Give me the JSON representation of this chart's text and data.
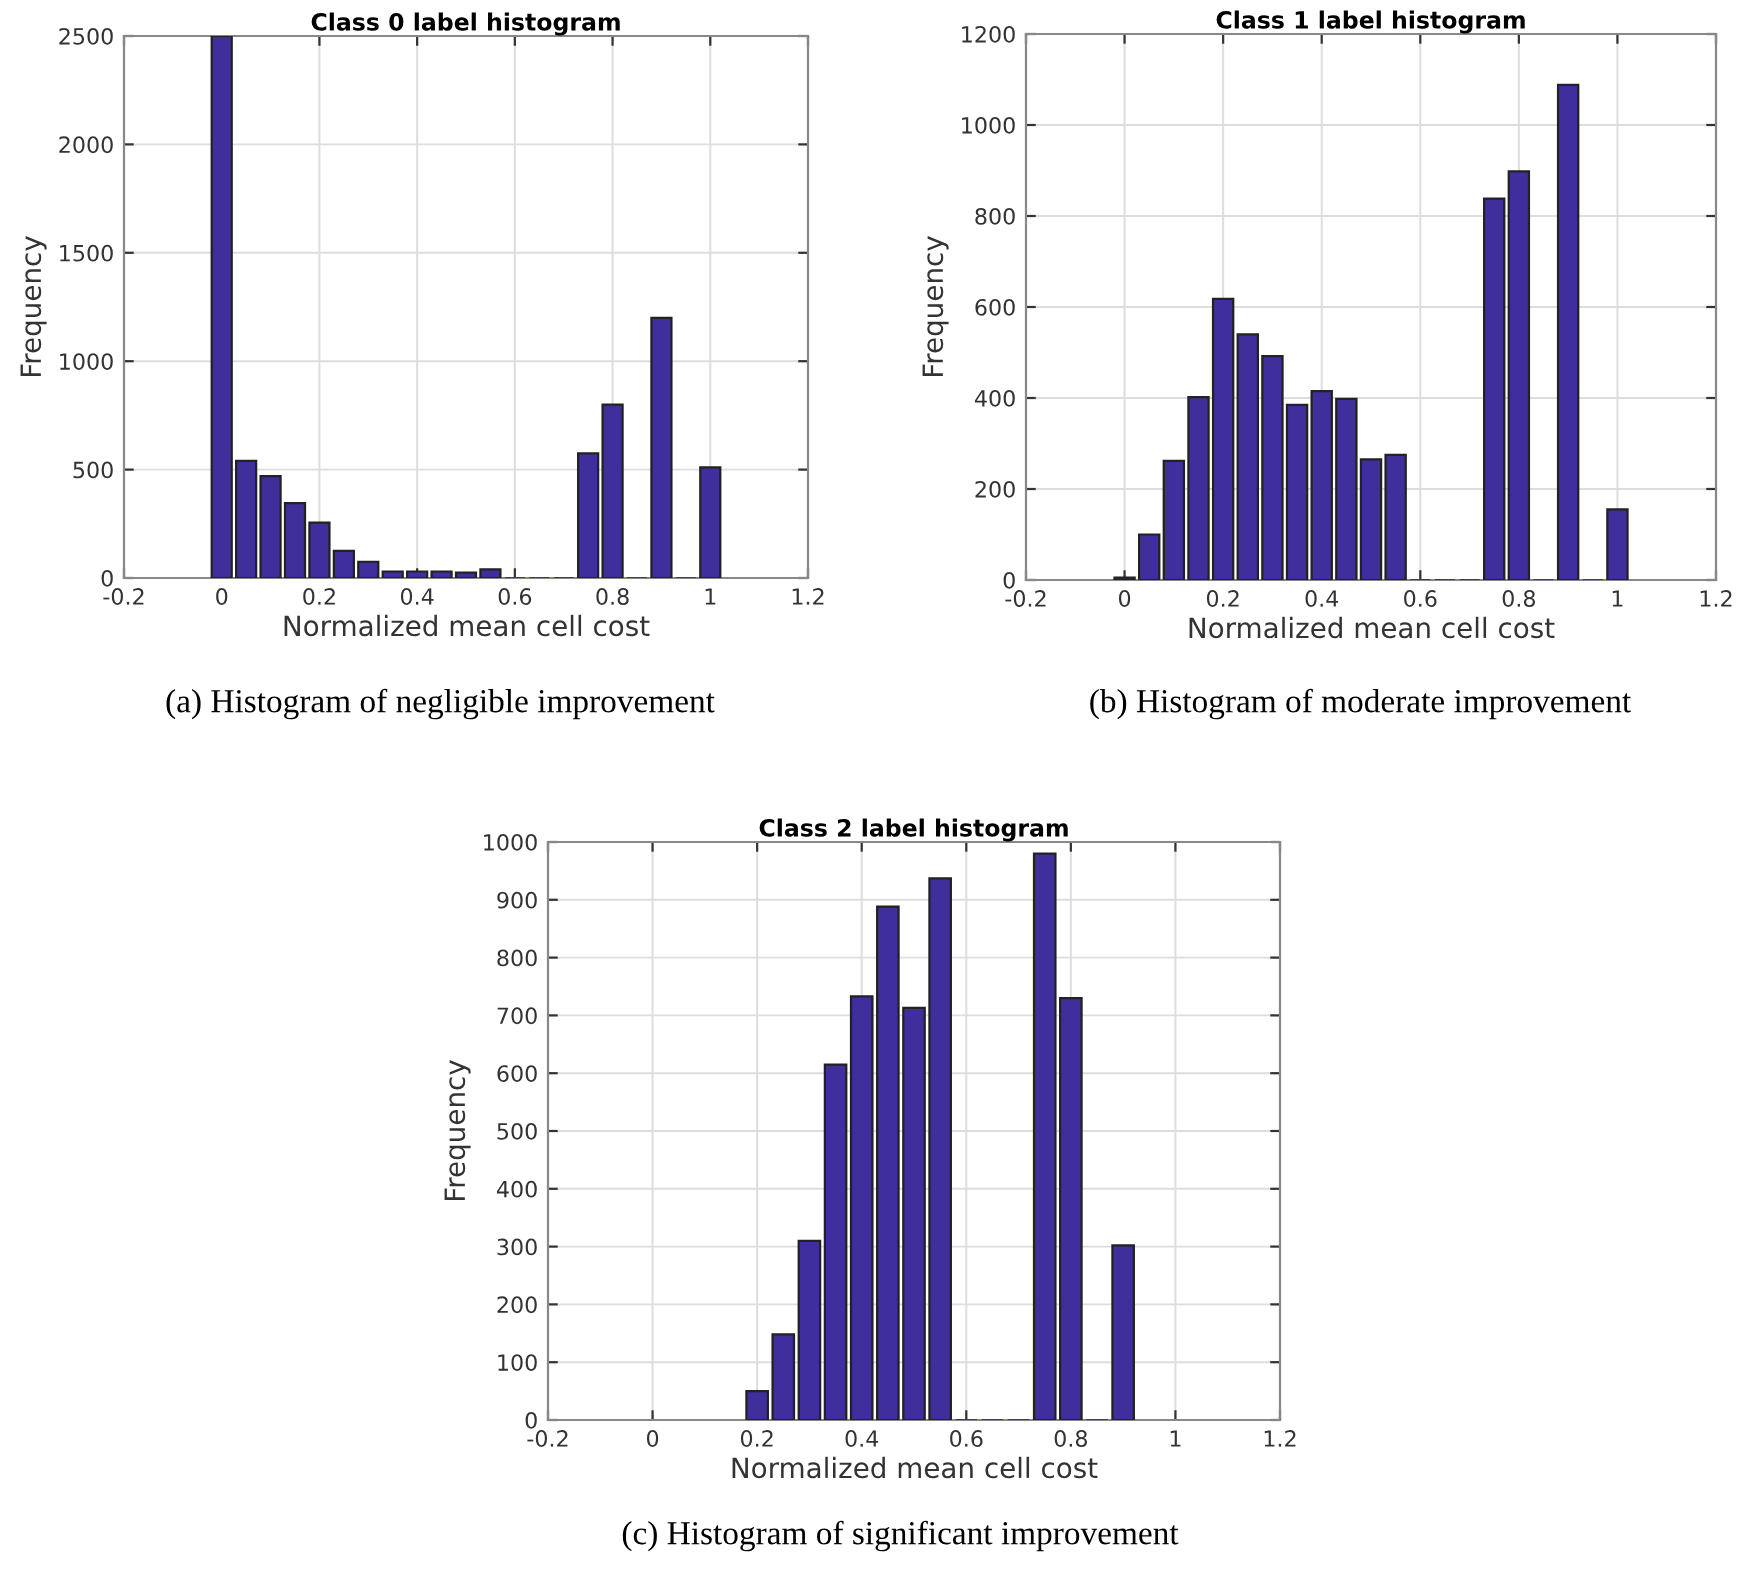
{
  "chart_data": [
    {
      "type": "histogram",
      "title": "Class 0 label histogram",
      "xlabel": "Normalized mean cell cost",
      "ylabel": "Frequency",
      "bins": [
        -0.025,
        0.025,
        0.075,
        0.125,
        0.175,
        0.225,
        0.275,
        0.325,
        0.375,
        0.425,
        0.475,
        0.525,
        0.575,
        0.625,
        0.675,
        0.725,
        0.775,
        0.825,
        0.875,
        0.925,
        0.975,
        1.025
      ],
      "values": [
        2500,
        540,
        470,
        345,
        255,
        125,
        75,
        30,
        30,
        30,
        25,
        40,
        0,
        0,
        0,
        575,
        800,
        0,
        1200,
        0,
        510
      ],
      "color": "#3f2f9c",
      "xlim": [
        -0.2,
        1.2
      ],
      "ylim": [
        0,
        2500
      ],
      "xticks": [
        -0.2,
        0,
        0.2,
        0.4,
        0.6,
        0.8,
        1,
        1.2
      ],
      "yticks": [
        0,
        500,
        1000,
        1500,
        2000,
        2500
      ],
      "grid": true,
      "annotations": [
        "(a) Histogram of negligible improvement"
      ]
    },
    {
      "type": "histogram",
      "title": "Class 1 label histogram",
      "xlabel": "Normalized mean cell cost",
      "ylabel": "Frequency",
      "bins": [
        -0.025,
        0.025,
        0.075,
        0.125,
        0.175,
        0.225,
        0.275,
        0.325,
        0.375,
        0.425,
        0.475,
        0.525,
        0.575,
        0.625,
        0.675,
        0.725,
        0.775,
        0.825,
        0.875,
        0.925,
        0.975,
        1.025
      ],
      "values": [
        5,
        100,
        262,
        402,
        618,
        540,
        492,
        385,
        415,
        398,
        265,
        275,
        0,
        0,
        0,
        838,
        898,
        0,
        1088,
        0,
        155
      ],
      "color": "#3f2f9c",
      "xlim": [
        -0.2,
        1.2
      ],
      "ylim": [
        0,
        1200
      ],
      "xticks": [
        -0.2,
        0,
        0.2,
        0.4,
        0.6,
        0.8,
        1,
        1.2
      ],
      "yticks": [
        0,
        200,
        400,
        600,
        800,
        1000,
        1200
      ],
      "grid": true,
      "annotations": [
        "(b) Histogram of moderate improvement"
      ]
    },
    {
      "type": "histogram",
      "title": "Class 2 label histogram",
      "xlabel": "Normalized mean cell cost",
      "ylabel": "Frequency",
      "bins": [
        0.175,
        0.225,
        0.275,
        0.325,
        0.375,
        0.425,
        0.475,
        0.525,
        0.575,
        0.625,
        0.675,
        0.725,
        0.775,
        0.825,
        0.875,
        0.925
      ],
      "values": [
        50,
        148,
        310,
        615,
        733,
        888,
        713,
        937,
        0,
        0,
        0,
        980,
        730,
        0,
        302
      ],
      "color": "#3f2f9c",
      "xlim": [
        -0.2,
        1.2
      ],
      "ylim": [
        0,
        1000
      ],
      "xticks": [
        -0.2,
        0,
        0.2,
        0.4,
        0.6,
        0.8,
        1,
        1.2
      ],
      "yticks": [
        0,
        100,
        200,
        300,
        400,
        500,
        600,
        700,
        800,
        900,
        1000
      ],
      "grid": true,
      "annotations": [
        "(c) Histogram of significant improvement"
      ]
    }
  ]
}
